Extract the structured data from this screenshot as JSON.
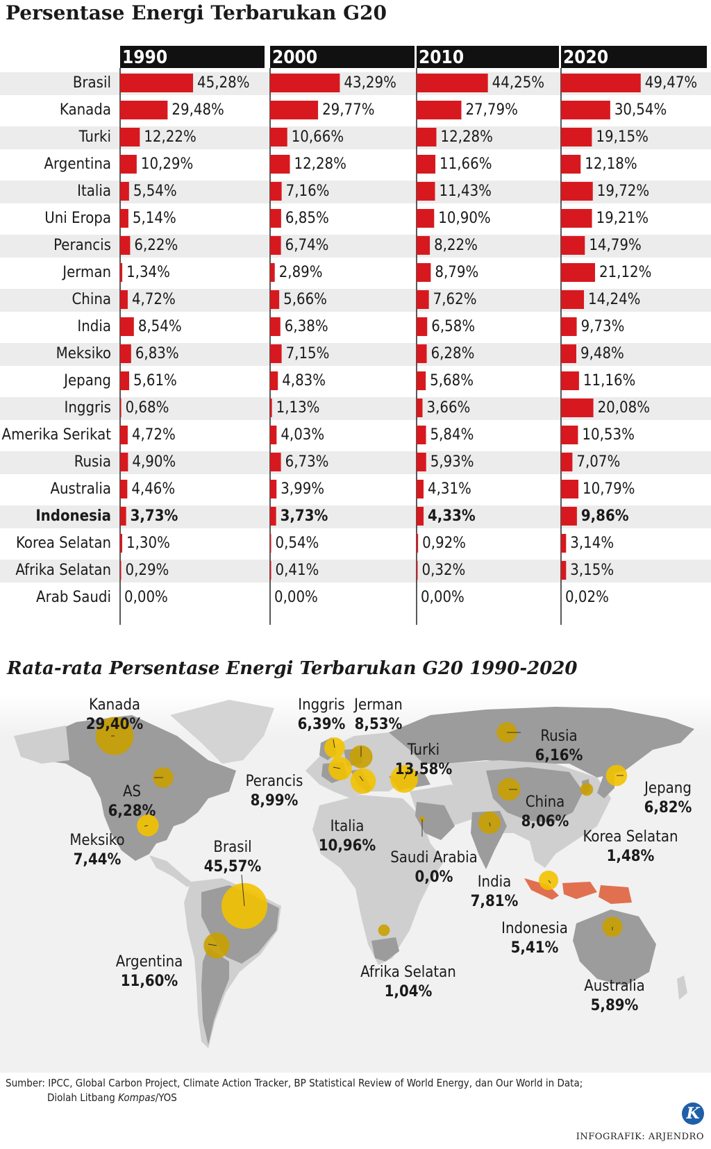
{
  "title": "Persentase Energi Terbarukan G20",
  "map_title": "Rata-rata Persentase Energi Terbarukan G20 1990-2020",
  "source_line1": "Sumber: IPCC, Global Carbon Project, Climate Action Tracker, BP Statistical Review of World Energy, dan Our World in Data;",
  "source_line2_prefix": "Diolah Litbang ",
  "source_line2_italic": "Kompas",
  "source_line2_suffix": "/YOS",
  "credit": "INFOGRAFIK: ARJENDRO",
  "logo_letter": "K",
  "colors": {
    "bar": "#d7191f",
    "header": "#111111",
    "row_stripe": "#ececec",
    "bubble": "#c9a000",
    "bubble_highlight": "#f2c200",
    "land": "#cfcfcf",
    "g20_land": "#9c9c9c",
    "indonesia_land": "#e07050"
  },
  "chart_data": {
    "type": "bar",
    "years": [
      "1990",
      "2000",
      "2010",
      "2020"
    ],
    "highlight": "Indonesia",
    "rows": [
      {
        "country": "Brasil",
        "values": [
          45.28,
          43.29,
          44.25,
          49.47
        ],
        "labels": [
          "45,28%",
          "43,29%",
          "44,25%",
          "49,47%"
        ]
      },
      {
        "country": "Kanada",
        "values": [
          29.48,
          29.77,
          27.79,
          30.54
        ],
        "labels": [
          "29,48%",
          "29,77%",
          "27,79%",
          "30,54%"
        ]
      },
      {
        "country": "Turki",
        "values": [
          12.22,
          10.66,
          12.28,
          19.15
        ],
        "labels": [
          "12,22%",
          "10,66%",
          "12,28%",
          "19,15%"
        ]
      },
      {
        "country": "Argentina",
        "values": [
          10.29,
          12.28,
          11.66,
          12.18
        ],
        "labels": [
          "10,29%",
          "12,28%",
          "11,66%",
          "12,18%"
        ]
      },
      {
        "country": "Italia",
        "values": [
          5.54,
          7.16,
          11.43,
          19.72
        ],
        "labels": [
          "5,54%",
          "7,16%",
          "11,43%",
          "19,72%"
        ]
      },
      {
        "country": "Uni Eropa",
        "values": [
          5.14,
          6.85,
          10.9,
          19.21
        ],
        "labels": [
          "5,14%",
          "6,85%",
          "10,90%",
          "19,21%"
        ]
      },
      {
        "country": "Perancis",
        "values": [
          6.22,
          6.74,
          8.22,
          14.79
        ],
        "labels": [
          "6,22%",
          "6,74%",
          "8,22%",
          "14,79%"
        ]
      },
      {
        "country": "Jerman",
        "values": [
          1.34,
          2.89,
          8.79,
          21.12
        ],
        "labels": [
          "1,34%",
          "2,89%",
          "8,79%",
          "21,12%"
        ]
      },
      {
        "country": "China",
        "values": [
          4.72,
          5.66,
          7.62,
          14.24
        ],
        "labels": [
          "4,72%",
          "5,66%",
          "7,62%",
          "14,24%"
        ]
      },
      {
        "country": "India",
        "values": [
          8.54,
          6.38,
          6.58,
          9.73
        ],
        "labels": [
          "8,54%",
          "6,38%",
          "6,58%",
          "9,73%"
        ]
      },
      {
        "country": "Meksiko",
        "values": [
          6.83,
          7.15,
          6.28,
          9.48
        ],
        "labels": [
          "6,83%",
          "7,15%",
          "6,28%",
          "9,48%"
        ]
      },
      {
        "country": "Jepang",
        "values": [
          5.61,
          4.83,
          5.68,
          11.16
        ],
        "labels": [
          "5,61%",
          "4,83%",
          "5,68%",
          "11,16%"
        ]
      },
      {
        "country": "Inggris",
        "values": [
          0.68,
          1.13,
          3.66,
          20.08
        ],
        "labels": [
          "0,68%",
          "1,13%",
          "3,66%",
          "20,08%"
        ]
      },
      {
        "country": "Amerika Serikat",
        "values": [
          4.72,
          4.03,
          5.84,
          10.53
        ],
        "labels": [
          "4,72%",
          "4,03%",
          "5,84%",
          "10,53%"
        ]
      },
      {
        "country": "Rusia",
        "values": [
          4.9,
          6.73,
          5.93,
          7.07
        ],
        "labels": [
          "4,90%",
          "6,73%",
          "5,93%",
          "7,07%"
        ]
      },
      {
        "country": "Australia",
        "values": [
          4.46,
          3.99,
          4.31,
          10.79
        ],
        "labels": [
          "4,46%",
          "3,99%",
          "4,31%",
          "10,79%"
        ]
      },
      {
        "country": "Indonesia",
        "values": [
          3.73,
          3.73,
          4.33,
          9.86
        ],
        "labels": [
          "3,73%",
          "3,73%",
          "4,33%",
          "9,86%"
        ]
      },
      {
        "country": "Korea Selatan",
        "values": [
          1.3,
          0.54,
          0.92,
          3.14
        ],
        "labels": [
          "1,30%",
          "0,54%",
          "0,92%",
          "3,14%"
        ]
      },
      {
        "country": "Afrika Selatan",
        "values": [
          0.29,
          0.41,
          0.32,
          3.15
        ],
        "labels": [
          "0,29%",
          "0,41%",
          "0,32%",
          "3,15%"
        ]
      },
      {
        "country": "Arab Saudi",
        "values": [
          0.0,
          0.0,
          0.0,
          0.02
        ],
        "labels": [
          "0,00%",
          "0,00%",
          "0,00%",
          "0,02%"
        ]
      }
    ]
  },
  "map_data": {
    "averages": [
      {
        "country": "Kanada",
        "value": 29.4,
        "label": "29,40%",
        "lon": -100,
        "lat": 57
      },
      {
        "country": "AS",
        "value": 6.28,
        "label": "6,28%",
        "lon": -96,
        "lat": 38
      },
      {
        "country": "Meksiko",
        "value": 7.44,
        "label": "7,44%",
        "lon": -102,
        "lat": 23
      },
      {
        "country": "Brasil",
        "value": 45.57,
        "label": "45,57%",
        "lon": -52,
        "lat": -11
      },
      {
        "country": "Argentina",
        "value": 11.6,
        "label": "11,60%",
        "lon": -64,
        "lat": -34
      },
      {
        "country": "Inggris",
        "value": 6.39,
        "label": "6,39%",
        "lon": -2,
        "lat": 53
      },
      {
        "country": "Jerman",
        "value": 8.53,
        "label": "8,53%",
        "lon": 10,
        "lat": 51
      },
      {
        "country": "Perancis",
        "value": 8.99,
        "label": "8,99%",
        "lon": 2,
        "lat": 46
      },
      {
        "country": "Italia",
        "value": 10.96,
        "label": "10,96%",
        "lon": 12,
        "lat": 42
      },
      {
        "country": "Turki",
        "value": 13.58,
        "label": "13,58%",
        "lon": 35,
        "lat": 39
      },
      {
        "country": "Saudi Arabia",
        "value": 0.0,
        "label": "0,0%",
        "lon": 45,
        "lat": 24
      },
      {
        "country": "Afrika Selatan",
        "value": 1.04,
        "label": "1,04%",
        "lon": 24,
        "lat": -30
      },
      {
        "country": "Rusia",
        "value": 6.16,
        "label": "6,16%",
        "lon": 90,
        "lat": 62
      },
      {
        "country": "China",
        "value": 8.06,
        "label": "8,06%",
        "lon": 104,
        "lat": 35
      },
      {
        "country": "India",
        "value": 7.81,
        "label": "7,81%",
        "lon": 79,
        "lat": 22
      },
      {
        "country": "Korea Selatan",
        "value": 1.48,
        "label": "1,48%",
        "lon": 128,
        "lat": 36
      },
      {
        "country": "Jepang",
        "value": 6.82,
        "label": "6,82%",
        "lon": 138,
        "lat": 36
      },
      {
        "country": "Indonesia",
        "value": 5.41,
        "label": "5,41%",
        "lon": 110,
        "lat": -7
      },
      {
        "country": "Australia",
        "value": 5.89,
        "label": "5,89%",
        "lon": 134,
        "lat": -25
      }
    ]
  }
}
